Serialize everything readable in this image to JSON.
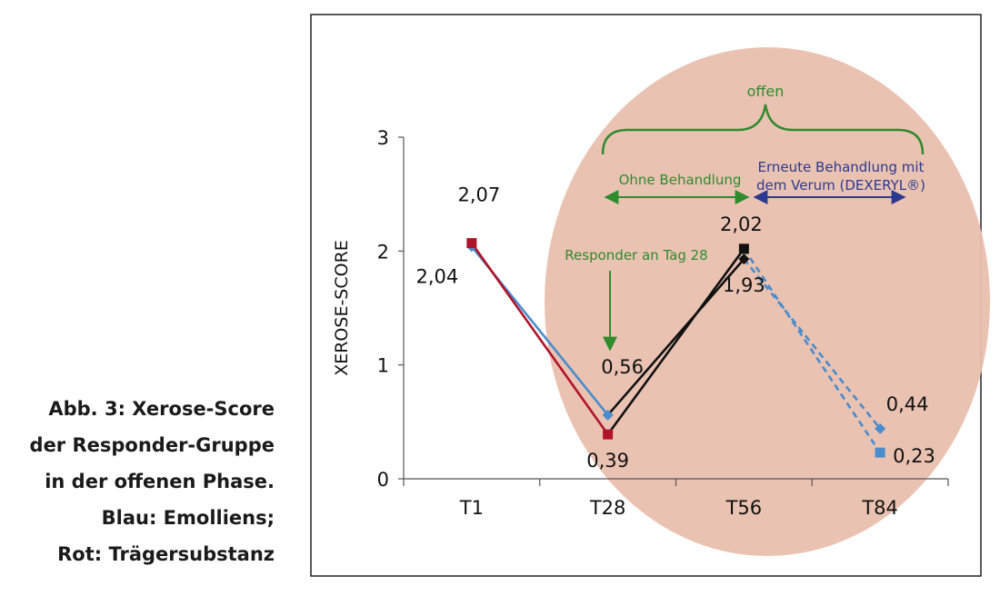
{
  "caption": {
    "lines": [
      "Abb. 3: Xerose-Score",
      "der Responder-Gruppe",
      "in der offenen Phase.",
      "Blau: Emolliens;",
      "Rot: Trägersubstanz"
    ]
  },
  "colors": {
    "blue": "#4a8ccc",
    "red": "#b0142a",
    "black": "#111111",
    "green": "#2e8b2e",
    "navy": "#2b3a8f",
    "ellipse": "#e9bfae"
  },
  "annotations": {
    "offen": "offen",
    "ohne": "Ohne Behandlung",
    "erneute_line1": "Erneute Behandlung mit",
    "erneute_line2": "dem Verum (DEXERYL®)",
    "responder": "Responder an Tag 28"
  },
  "chart_data": {
    "type": "line",
    "categories": [
      "T1",
      "T28",
      "T56",
      "T84"
    ],
    "ylabel": "XEROSE-SCORE",
    "ylim": [
      0,
      3
    ],
    "yticks": [
      "0",
      "1",
      "2",
      "3"
    ],
    "series": [
      {
        "color": "#4a8ccc",
        "marker": "diamond",
        "values": [
          2.04,
          0.56,
          1.93,
          0.44
        ],
        "dashed_from_index": 2
      },
      {
        "color": "#b0142a",
        "marker": "square",
        "values": [
          2.07,
          0.39,
          2.02,
          0.23
        ],
        "dashed_from_index": 2
      }
    ],
    "black_segments": [
      {
        "from": [
          1,
          0.56
        ],
        "to": [
          2,
          1.93
        ]
      },
      {
        "from": [
          1,
          0.39
        ],
        "to": [
          2,
          2.02
        ]
      }
    ],
    "special_markers": [
      {
        "index": 2,
        "value": 2.02,
        "color": "#111111",
        "shape": "square"
      },
      {
        "index": 2,
        "value": 1.93,
        "color": "#111111",
        "shape": "diamond"
      },
      {
        "index": 3,
        "value": 0.23,
        "color": "#4a8ccc",
        "shape": "square"
      }
    ],
    "data_labels": [
      {
        "text": "2,07",
        "index": 0,
        "value": 2.07,
        "pos": "above"
      },
      {
        "text": "2,04",
        "index": 0,
        "value": 2.04,
        "pos": "below-left"
      },
      {
        "text": "0,56",
        "index": 1,
        "value": 0.56,
        "pos": "above"
      },
      {
        "text": "0,39",
        "index": 1,
        "value": 0.39,
        "pos": "below"
      },
      {
        "text": "2,02",
        "index": 2,
        "value": 2.02,
        "pos": "above"
      },
      {
        "text": "1,93",
        "index": 2,
        "value": 1.93,
        "pos": "below"
      },
      {
        "text": "0,44",
        "index": 3,
        "value": 0.44,
        "pos": "above-right"
      },
      {
        "text": "0,23",
        "index": 3,
        "value": 0.23,
        "pos": "right"
      }
    ]
  }
}
